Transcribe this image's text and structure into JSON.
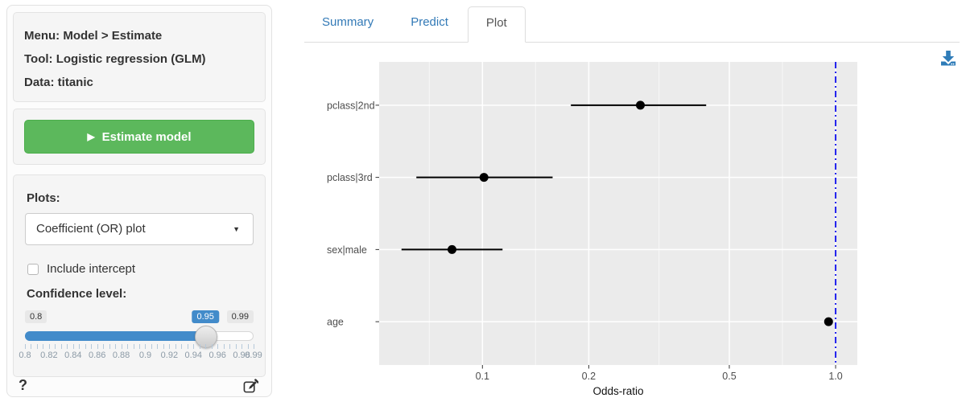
{
  "sidebar": {
    "info": {
      "line1": "Menu: Model > Estimate",
      "line2": "Tool: Logistic regression (GLM)",
      "line3": "Data: titanic"
    },
    "estimate_button": {
      "icon": "play-icon",
      "label": "Estimate model"
    },
    "plots": {
      "label": "Plots:",
      "selected": "Coefficient (OR) plot"
    },
    "include_intercept": {
      "label": "Include intercept",
      "checked": false
    },
    "confidence": {
      "label": "Confidence level:",
      "min_label": "0.8",
      "value_label": "0.95",
      "max_label": "0.99",
      "min": 0.8,
      "max": 0.99,
      "value": 0.95,
      "grid_labels": [
        "0.8",
        "0.82",
        "0.84",
        "0.86",
        "0.88",
        "0.9",
        "0.92",
        "0.94",
        "0.96",
        "0.98",
        "0.99"
      ]
    },
    "help_label": "?"
  },
  "main": {
    "tabs": [
      {
        "label": "Summary",
        "active": false
      },
      {
        "label": "Predict",
        "active": false
      },
      {
        "label": "Plot",
        "active": true
      }
    ]
  },
  "chart_data": {
    "type": "scatter",
    "subtype": "horizontal-errorbar-coefficient-plot",
    "categories": [
      "pclass|2nd",
      "pclass|3rd",
      "sex|male",
      "age"
    ],
    "series": [
      {
        "name": "odds_ratio",
        "values": [
          0.28,
          0.101,
          0.082,
          0.955
        ]
      },
      {
        "name": "ci_low",
        "values": [
          0.178,
          0.065,
          0.059,
          0.94
        ]
      },
      {
        "name": "ci_high",
        "values": [
          0.43,
          0.158,
          0.114,
          0.97
        ]
      }
    ],
    "xlabel": "Odds-ratio",
    "x_scale": "log10",
    "x_range": [
      0.051,
      1.152
    ],
    "x_ticks": [
      0.1,
      0.2,
      0.5,
      1.0
    ],
    "x_tick_labels": [
      "0.1",
      "0.2",
      "0.5",
      "1.0"
    ],
    "x_minor_ticks": [
      0.0707,
      0.1414,
      0.3162,
      0.7071
    ],
    "reference_line": {
      "x": 1.0,
      "linetype": "dotdash",
      "color": "#2222ee"
    },
    "grid": "white-on-gray",
    "legend": "none"
  },
  "colors": {
    "accent_blue": "#337ab7",
    "slider_blue": "#428bca",
    "button_green": "#5cb85c",
    "panel_gray": "#ebebeb",
    "vline_blue": "#2222ee",
    "axis_text": "#4d4d4d"
  }
}
